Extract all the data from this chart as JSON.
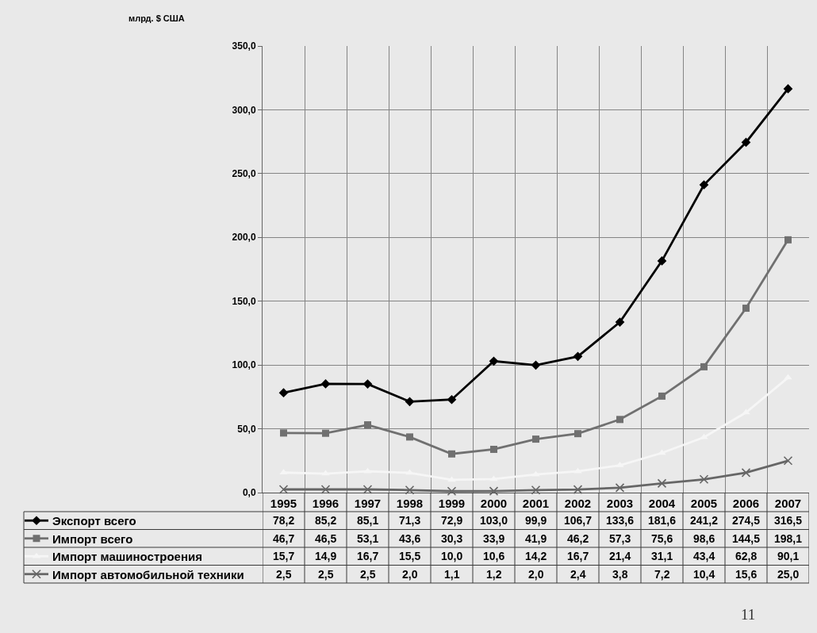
{
  "chart_data": {
    "type": "line",
    "annotations": [
      "млрд. $ США",
      "11"
    ],
    "categories": [
      "1995",
      "1996",
      "1997",
      "1998",
      "1999",
      "2000",
      "2001",
      "2002",
      "2003",
      "2004",
      "2005",
      "2006",
      "2007"
    ],
    "ylim": [
      0,
      350
    ],
    "yticks": [
      {
        "value": 0,
        "label": "0,0"
      },
      {
        "value": 50,
        "label": "50,0"
      },
      {
        "value": 100,
        "label": "100,0"
      },
      {
        "value": 150,
        "label": "150,0"
      },
      {
        "value": 200,
        "label": "200,0"
      },
      {
        "value": 250,
        "label": "250,0"
      },
      {
        "value": 300,
        "label": "300,0"
      },
      {
        "value": 350,
        "label": "350,0"
      }
    ],
    "grid": true,
    "legend": "bottom left",
    "line_style": "solid",
    "series": [
      {
        "name": "Экспорт всего",
        "color": "#000000",
        "marker": "diamond",
        "values": [
          78.2,
          85.2,
          85.1,
          71.3,
          72.9,
          103.0,
          99.9,
          106.7,
          133.6,
          181.6,
          241.2,
          274.5,
          316.5
        ],
        "value_labels": [
          "78,2",
          "85,2",
          "85,1",
          "71,3",
          "72,9",
          "103,0",
          "99,9",
          "106,7",
          "133,6",
          "181,6",
          "241,2",
          "274,5",
          "316,5"
        ]
      },
      {
        "name": "Импорт всего",
        "color": "#707070",
        "marker": "square",
        "values": [
          46.7,
          46.5,
          53.1,
          43.6,
          30.3,
          33.9,
          41.9,
          46.2,
          57.3,
          75.6,
          98.6,
          144.5,
          198.1
        ],
        "value_labels": [
          "46,7",
          "46,5",
          "53,1",
          "43,6",
          "30,3",
          "33,9",
          "41,9",
          "46,2",
          "57,3",
          "75,6",
          "98,6",
          "144,5",
          "198,1"
        ]
      },
      {
        "name": "Импорт машиностроения",
        "color": "#f6f6f6",
        "marker": "triangle",
        "values": [
          15.7,
          14.9,
          16.7,
          15.5,
          10.0,
          10.6,
          14.2,
          16.7,
          21.4,
          31.1,
          43.4,
          62.8,
          90.1
        ],
        "value_labels": [
          "15,7",
          "14,9",
          "16,7",
          "15,5",
          "10,0",
          "10,6",
          "14,2",
          "16,7",
          "21,4",
          "31,1",
          "43,4",
          "62,8",
          "90,1"
        ]
      },
      {
        "name": "Импорт автомобильной техники",
        "color": "#666666",
        "marker": "cross",
        "values": [
          2.5,
          2.5,
          2.5,
          2.0,
          1.1,
          1.2,
          2.0,
          2.4,
          3.8,
          7.2,
          10.4,
          15.6,
          25.0
        ],
        "value_labels": [
          "2,5",
          "2,5",
          "2,5",
          "2,0",
          "1,1",
          "1,2",
          "2,0",
          "2,4",
          "3,8",
          "7,2",
          "10,4",
          "15,6",
          "25,0"
        ]
      }
    ]
  }
}
